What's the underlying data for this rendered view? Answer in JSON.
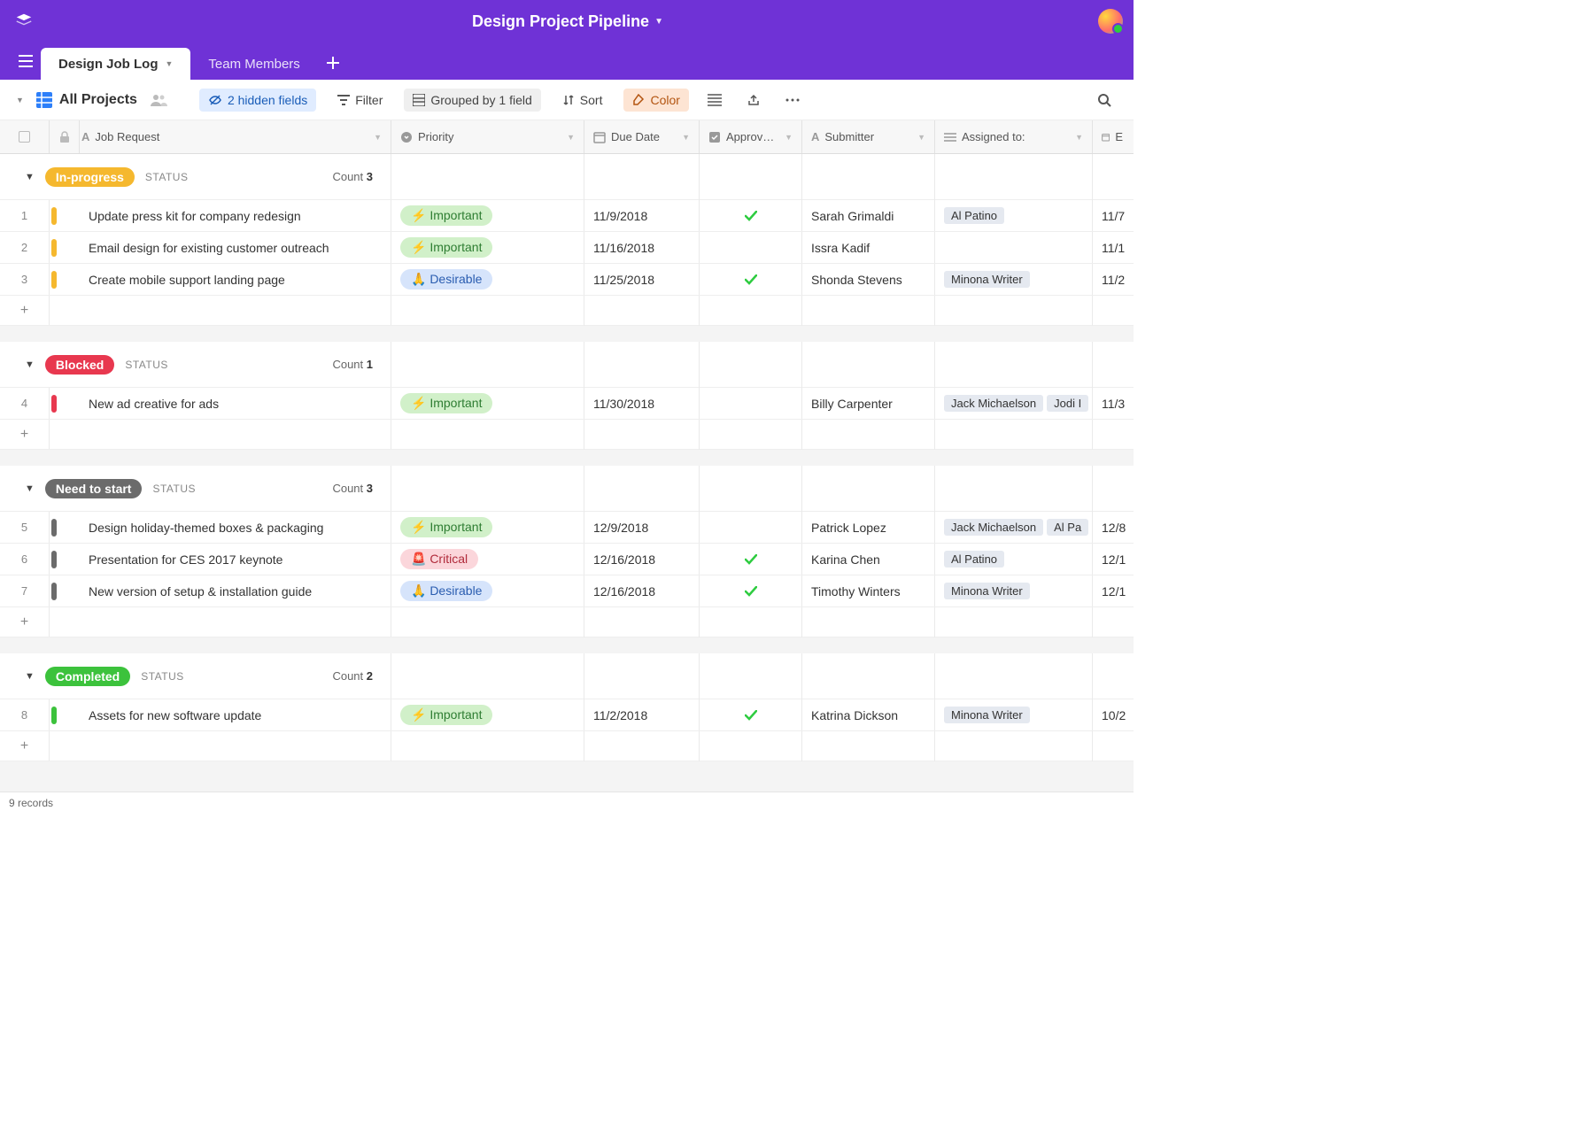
{
  "brand_color": "#6f32d6",
  "workspace_title": "Design Project Pipeline",
  "tabs": [
    {
      "label": "Design Job Log",
      "active": true
    },
    {
      "label": "Team Members",
      "active": false
    }
  ],
  "view": {
    "name": "All Projects",
    "hidden_fields_label": "2 hidden fields",
    "filter_label": "Filter",
    "grouped_label": "Grouped by 1 field",
    "sort_label": "Sort",
    "color_label": "Color"
  },
  "columns": {
    "job": "Job Request",
    "priority": "Priority",
    "due": "Due Date",
    "approved": "Approv…",
    "submitter": "Submitter",
    "assigned": "Assigned to:",
    "last": "E"
  },
  "status_label": "STATUS",
  "count_label": "Count",
  "priority_styles": {
    "Important": {
      "emoji": "⚡",
      "bg": "#d1f0c9",
      "fg": "#2e7d32"
    },
    "Desirable": {
      "emoji": "🙏",
      "bg": "#d6e4fb",
      "fg": "#2a5db0"
    },
    "Critical": {
      "emoji": "🚨",
      "bg": "#fbd6db",
      "fg": "#b02a3a"
    }
  },
  "groups": [
    {
      "status": "In-progress",
      "pill_color": "#f5b82e",
      "bar_color": "#f5b82e",
      "count": 3,
      "rows": [
        {
          "n": 1,
          "job": "Update press kit for company redesign",
          "priority": "Important",
          "due": "11/9/2018",
          "approved": true,
          "submitter": "Sarah Grimaldi",
          "assigned": [
            "Al Patino"
          ],
          "last": "11/7"
        },
        {
          "n": 2,
          "job": "Email design for existing customer outreach",
          "priority": "Important",
          "due": "11/16/2018",
          "approved": false,
          "submitter": "Issra Kadif",
          "assigned": [],
          "last": "11/1"
        },
        {
          "n": 3,
          "job": "Create mobile support landing page",
          "priority": "Desirable",
          "due": "11/25/2018",
          "approved": true,
          "submitter": "Shonda Stevens",
          "assigned": [
            "Minona Writer"
          ],
          "last": "11/2"
        }
      ]
    },
    {
      "status": "Blocked",
      "pill_color": "#e8384f",
      "bar_color": "#e8384f",
      "count": 1,
      "rows": [
        {
          "n": 4,
          "job": "New ad creative for ads",
          "priority": "Important",
          "due": "11/30/2018",
          "approved": false,
          "submitter": "Billy Carpenter",
          "assigned": [
            "Jack Michaelson",
            "Jodi I"
          ],
          "last": "11/3"
        }
      ]
    },
    {
      "status": "Need to start",
      "pill_color": "#6b6b6b",
      "bar_color": "#6b6b6b",
      "count": 3,
      "rows": [
        {
          "n": 5,
          "job": "Design holiday-themed boxes & packaging",
          "priority": "Important",
          "due": "12/9/2018",
          "approved": false,
          "submitter": "Patrick Lopez",
          "assigned": [
            "Jack Michaelson",
            "Al Pa"
          ],
          "last": "12/8"
        },
        {
          "n": 6,
          "job": "Presentation for CES 2017 keynote",
          "priority": "Critical",
          "due": "12/16/2018",
          "approved": true,
          "submitter": "Karina Chen",
          "assigned": [
            "Al Patino"
          ],
          "last": "12/1"
        },
        {
          "n": 7,
          "job": "New version of setup & installation guide",
          "priority": "Desirable",
          "due": "12/16/2018",
          "approved": true,
          "submitter": "Timothy Winters",
          "assigned": [
            "Minona Writer"
          ],
          "last": "12/1"
        }
      ]
    },
    {
      "status": "Completed",
      "pill_color": "#3cc23c",
      "bar_color": "#3cc23c",
      "count": 2,
      "rows": [
        {
          "n": 8,
          "job": "Assets for new software update",
          "priority": "Important",
          "due": "11/2/2018",
          "approved": true,
          "submitter": "Katrina Dickson",
          "assigned": [
            "Minona Writer"
          ],
          "last": "10/2"
        }
      ]
    }
  ],
  "footer_records": "9 records"
}
